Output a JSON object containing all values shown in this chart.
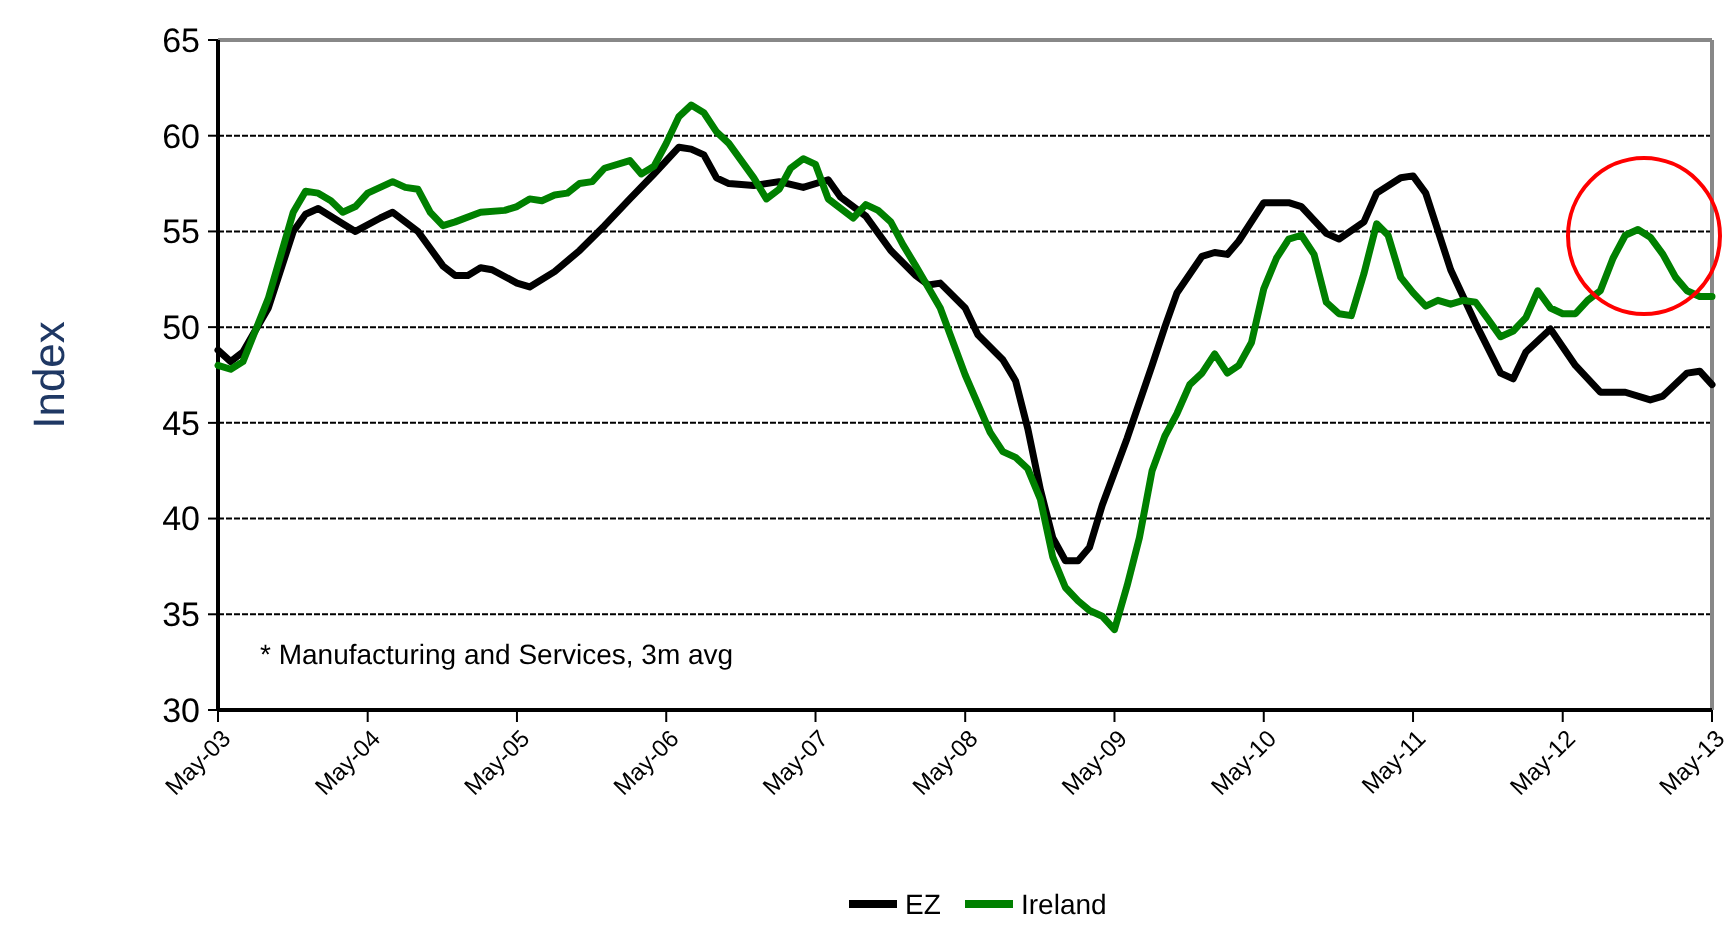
{
  "chart_data": {
    "type": "line",
    "ylabel": "Index",
    "ylim": [
      30,
      65
    ],
    "yticks": [
      30,
      35,
      40,
      45,
      50,
      55,
      60,
      65
    ],
    "xlim": [
      "2003-05",
      "2013-05"
    ],
    "xticks": [
      {
        "value": "2003-05",
        "label": "May-03"
      },
      {
        "value": "2004-05",
        "label": "May-04"
      },
      {
        "value": "2005-05",
        "label": "May-05"
      },
      {
        "value": "2006-05",
        "label": "May-06"
      },
      {
        "value": "2007-05",
        "label": "May-07"
      },
      {
        "value": "2008-05",
        "label": "May-08"
      },
      {
        "value": "2009-05",
        "label": "May-09"
      },
      {
        "value": "2010-05",
        "label": "May-10"
      },
      {
        "value": "2011-05",
        "label": "May-11"
      },
      {
        "value": "2012-05",
        "label": "May-12"
      },
      {
        "value": "2013-05",
        "label": "May-13"
      }
    ],
    "grid": "y",
    "legend": "bottom",
    "marker": "none",
    "line_style": "solid",
    "annotations": [
      "* Manufacturing and Services, 3m avg"
    ],
    "series": [
      {
        "name": "EZ",
        "color": "#000000",
        "x": [
          "2003-05",
          "2003-06",
          "2003-07",
          "2003-09",
          "2003-11",
          "2003-12",
          "2004-01",
          "2004-03",
          "2004-04",
          "2004-06",
          "2004-07",
          "2004-09",
          "2004-11",
          "2004-12",
          "2005-01",
          "2005-02",
          "2005-03",
          "2005-05",
          "2005-06",
          "2005-08",
          "2005-10",
          "2005-12",
          "2006-02",
          "2006-04",
          "2006-06",
          "2006-07",
          "2006-08",
          "2006-09",
          "2006-10",
          "2006-12",
          "2007-02",
          "2007-04",
          "2007-06",
          "2007-07",
          "2007-09",
          "2007-11",
          "2008-01",
          "2008-02",
          "2008-03",
          "2008-05",
          "2008-06",
          "2008-08",
          "2008-09",
          "2008-10",
          "2008-11",
          "2008-12",
          "2009-01",
          "2009-02",
          "2009-03",
          "2009-04",
          "2009-06",
          "2009-08",
          "2009-09",
          "2009-10",
          "2009-12",
          "2010-01",
          "2010-02",
          "2010-03",
          "2010-05",
          "2010-07",
          "2010-08",
          "2010-10",
          "2010-11",
          "2011-01",
          "2011-02",
          "2011-04",
          "2011-05",
          "2011-06",
          "2011-08",
          "2011-10",
          "2011-12",
          "2012-01",
          "2012-02",
          "2012-04",
          "2012-06",
          "2012-08",
          "2012-10",
          "2012-12",
          "2013-01",
          "2013-03",
          "2013-04",
          "2013-05"
        ],
        "values": [
          48.8,
          48.2,
          48.7,
          51,
          55,
          55.9,
          56.2,
          55.4,
          55,
          55.7,
          56,
          55,
          53.2,
          52.7,
          52.7,
          53.1,
          53,
          52.3,
          52.1,
          52.9,
          54,
          55.3,
          56.7,
          58,
          59.4,
          59.3,
          59,
          57.8,
          57.5,
          57.4,
          57.6,
          57.3,
          57.7,
          56.8,
          55.8,
          54,
          52.7,
          52.2,
          52.3,
          51,
          49.6,
          48.3,
          47.2,
          44.7,
          41.5,
          39,
          37.8,
          37.8,
          38.5,
          40.7,
          44.2,
          48,
          50,
          51.8,
          53.7,
          53.9,
          53.8,
          54.5,
          56.5,
          56.5,
          56.3,
          54.9,
          54.6,
          55.5,
          57,
          57.8,
          57.9,
          57,
          53,
          50.2,
          47.6,
          47.3,
          48.7,
          49.9,
          48,
          46.6,
          46.6,
          46.2,
          46.4,
          47.6,
          47.7,
          47
        ]
      },
      {
        "name": "Ireland",
        "color": "#008000",
        "x": [
          "2003-05",
          "2003-06",
          "2003-07",
          "2003-09",
          "2003-11",
          "2003-12",
          "2004-01",
          "2004-02",
          "2004-03",
          "2004-04",
          "2004-05",
          "2004-07",
          "2004-08",
          "2004-09",
          "2004-10",
          "2004-11",
          "2004-12",
          "2005-02",
          "2005-04",
          "2005-05",
          "2005-06",
          "2005-07",
          "2005-08",
          "2005-09",
          "2005-10",
          "2005-11",
          "2005-12",
          "2006-02",
          "2006-03",
          "2006-04",
          "2006-05",
          "2006-06",
          "2006-07",
          "2006-08",
          "2006-09",
          "2006-10",
          "2006-12",
          "2007-01",
          "2007-02",
          "2007-03",
          "2007-04",
          "2007-05",
          "2007-06",
          "2007-08",
          "2007-09",
          "2007-10",
          "2007-11",
          "2007-12",
          "2008-01",
          "2008-03",
          "2008-05",
          "2008-07",
          "2008-08",
          "2008-09",
          "2008-10",
          "2008-11",
          "2008-12",
          "2009-01",
          "2009-02",
          "2009-03",
          "2009-04",
          "2009-05",
          "2009-06",
          "2009-07",
          "2009-08",
          "2009-09",
          "2009-10",
          "2009-11",
          "2009-12",
          "2010-01",
          "2010-02",
          "2010-03",
          "2010-04",
          "2010-05",
          "2010-06",
          "2010-07",
          "2010-08",
          "2010-09",
          "2010-10",
          "2010-11",
          "2010-12",
          "2011-01",
          "2011-02",
          "2011-03",
          "2011-04",
          "2011-05",
          "2011-06",
          "2011-07",
          "2011-08",
          "2011-09",
          "2011-10",
          "2011-11",
          "2011-12",
          "2012-01",
          "2012-02",
          "2012-03",
          "2012-04",
          "2012-05",
          "2012-06",
          "2012-07",
          "2012-08",
          "2012-09",
          "2012-10",
          "2012-11",
          "2012-12",
          "2013-01",
          "2013-02",
          "2013-03",
          "2013-04",
          "2013-05"
        ],
        "values": [
          48,
          47.8,
          48.2,
          51.5,
          56,
          57.1,
          57,
          56.6,
          56,
          56.3,
          57,
          57.6,
          57.3,
          57.2,
          56,
          55.3,
          55.5,
          56,
          56.1,
          56.3,
          56.7,
          56.6,
          56.9,
          57,
          57.5,
          57.6,
          58.3,
          58.7,
          58,
          58.4,
          59.6,
          61,
          61.6,
          61.2,
          60.2,
          59.6,
          57.8,
          56.7,
          57.2,
          58.3,
          58.8,
          58.5,
          56.7,
          55.7,
          56.4,
          56.1,
          55.5,
          54.3,
          53.2,
          51,
          47.5,
          44.5,
          43.5,
          43.2,
          42.6,
          41,
          38,
          36.4,
          35.7,
          35.2,
          34.9,
          34.2,
          36.5,
          39,
          42.5,
          44.3,
          45.5,
          47,
          47.6,
          48.6,
          47.6,
          48,
          49.2,
          52,
          53.6,
          54.6,
          54.8,
          53.8,
          51.3,
          50.7,
          50.6,
          52.8,
          55.4,
          54.8,
          52.6,
          51.8,
          51.1,
          51.4,
          51.2,
          51.4,
          51.3,
          50.4,
          49.5,
          49.8,
          50.5,
          51.9,
          51,
          50.7,
          50.7,
          51.4,
          51.9,
          53.6,
          54.8,
          55.1,
          54.7,
          53.8,
          52.6,
          51.9,
          51.6,
          51.6
        ]
      }
    ]
  }
}
